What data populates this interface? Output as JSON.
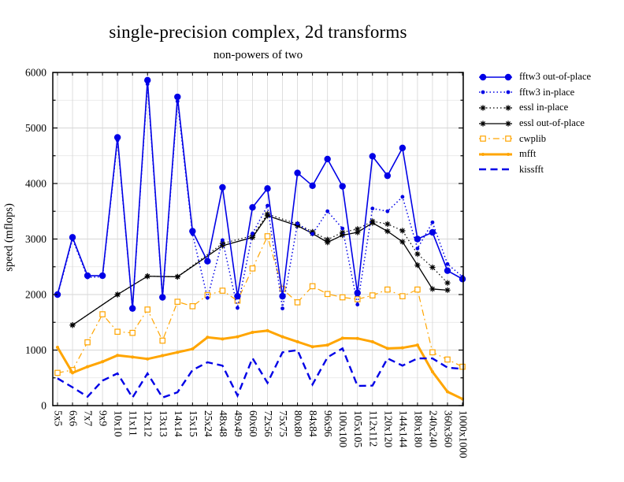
{
  "header": {
    "title": "single-precision complex, 2d transforms",
    "subtitle": "non-powers of two"
  },
  "axes": {
    "y_label": "speed (mflops)",
    "y_ticks": [
      0,
      1000,
      2000,
      3000,
      4000,
      5000,
      6000
    ],
    "y_minor_step": 500,
    "x_tick_rotation": 90
  },
  "colors": {
    "fftw3_blue": "#0000e6",
    "essl_black": "#000000",
    "cwp_orange": "#ffa500",
    "grid_major": "#c8c8c8",
    "grid_minor": "#e4e4e4",
    "grid_vertical": "#d6d6d6"
  },
  "chart_data": {
    "type": "line",
    "title": "single-precision complex, 2d transforms",
    "subtitle": "non-powers of two",
    "xlabel": "",
    "ylabel": "speed (mflops)",
    "ylim": [
      0,
      6000
    ],
    "grid": true,
    "legend_position": "right-outside",
    "categories": [
      "5x5",
      "6x6",
      "7x7",
      "9x9",
      "10x10",
      "11x11",
      "12x12",
      "13x13",
      "14x14",
      "15x15",
      "25x24",
      "48x48",
      "49x49",
      "60x60",
      "72x56",
      "75x75",
      "80x80",
      "84x84",
      "96x96",
      "100x100",
      "105x105",
      "112x112",
      "120x120",
      "144x144",
      "180x180",
      "240x240",
      "360x360",
      "1000x1000"
    ],
    "series": [
      {
        "name": "fftw3 out-of-place",
        "color": "#0000e6",
        "style": "solid",
        "width": 1.6,
        "marker": "circle",
        "marker_size": 4.2,
        "values": [
          2000,
          3030,
          2340,
          2340,
          4830,
          1750,
          5860,
          1950,
          5560,
          3140,
          2600,
          3930,
          1970,
          3570,
          3910,
          1970,
          4190,
          3960,
          4440,
          3950,
          2030,
          4490,
          4140,
          4640,
          3000,
          3120,
          2430,
          2280
        ]
      },
      {
        "name": "fftw3 in-place",
        "color": "#0000e6",
        "style": "dotted",
        "width": 1.5,
        "marker": "circle",
        "marker_size": 2.4,
        "values": [
          1980,
          3000,
          2310,
          2320,
          4780,
          1740,
          5790,
          1930,
          5480,
          3090,
          1940,
          2980,
          1760,
          3100,
          3600,
          1750,
          3280,
          3090,
          3500,
          3190,
          1820,
          3550,
          3500,
          3760,
          2830,
          3300,
          2550,
          2320
        ]
      },
      {
        "name": "essl in-place",
        "color": "#000000",
        "style": "dotted",
        "width": 1.2,
        "marker": "asterisk",
        "marker_size": 3.6,
        "values": [
          null,
          1450,
          null,
          null,
          2000,
          null,
          2330,
          null,
          2320,
          null,
          null,
          2920,
          null,
          3060,
          3450,
          null,
          3270,
          3130,
          2990,
          3120,
          3180,
          3320,
          3270,
          3150,
          2730,
          2490,
          2210,
          null
        ]
      },
      {
        "name": "essl out-of-place",
        "color": "#000000",
        "style": "solid",
        "width": 1.3,
        "marker": "asterisk",
        "marker_size": 3.6,
        "values": [
          null,
          1450,
          null,
          null,
          2000,
          null,
          2330,
          null,
          2320,
          null,
          null,
          2880,
          null,
          3030,
          3420,
          null,
          3240,
          3100,
          2940,
          3070,
          3120,
          3290,
          3140,
          2950,
          2530,
          2100,
          2080,
          null
        ]
      },
      {
        "name": "cwplib",
        "color": "#ffa500",
        "style": "dashdot",
        "width": 1.2,
        "marker": "square",
        "marker_size": 3.2,
        "values": [
          590,
          640,
          1140,
          1645,
          1330,
          1310,
          1730,
          1170,
          1870,
          1790,
          1990,
          2070,
          1890,
          2470,
          3050,
          2100,
          1860,
          2150,
          2010,
          1950,
          1915,
          1985,
          2090,
          1970,
          2090,
          960,
          830,
          700
        ]
      },
      {
        "name": "mfft",
        "color": "#ffa500",
        "style": "solid",
        "width": 3,
        "marker": "dot",
        "marker_size": 2,
        "values": [
          1050,
          590,
          700,
          790,
          905,
          875,
          840,
          900,
          960,
          1020,
          1230,
          1200,
          1240,
          1320,
          1350,
          1240,
          1150,
          1060,
          1090,
          1215,
          1210,
          1150,
          1030,
          1040,
          1090,
          610,
          250,
          120
        ]
      },
      {
        "name": "kissfft",
        "color": "#0000e6",
        "style": "dashed",
        "width": 2.4,
        "marker": "none",
        "marker_size": 0,
        "values": [
          490,
          330,
          160,
          450,
          580,
          145,
          580,
          145,
          240,
          640,
          780,
          720,
          180,
          855,
          410,
          960,
          1000,
          380,
          870,
          1030,
          355,
          360,
          850,
          720,
          850,
          850,
          685,
          660
        ]
      }
    ]
  }
}
